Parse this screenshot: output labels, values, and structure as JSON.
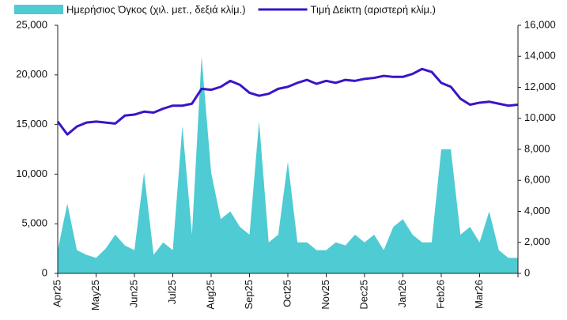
{
  "chart_data": {
    "type": "area-line",
    "categories": [
      "Apr25",
      null,
      null,
      null,
      "May25",
      null,
      null,
      null,
      "Jun25",
      null,
      null,
      null,
      "Jul25",
      null,
      null,
      null,
      "Aug25",
      null,
      null,
      null,
      "Sep25",
      null,
      null,
      null,
      "Oct25",
      null,
      null,
      null,
      "Nov25",
      null,
      null,
      null,
      "Dec25",
      null,
      null,
      null,
      "Jan26",
      null,
      null,
      null,
      "Feb26",
      null,
      null,
      null,
      "Mar26",
      null,
      null,
      null,
      null
    ],
    "series": [
      {
        "name": "Ημερήσιος Όγκος (χιλ. μετ., δεξιά κλίμ.)",
        "color": "#4ecbd3",
        "axis": "y2",
        "kind": "area",
        "values": [
          1500,
          4500,
          1500,
          1200,
          1000,
          1600,
          2500,
          1800,
          1500,
          6500,
          1200,
          2000,
          1500,
          9500,
          2500,
          14000,
          6500,
          3500,
          4000,
          3000,
          2500,
          9800,
          2000,
          2500,
          7200,
          2000,
          2000,
          1500,
          1500,
          2000,
          1800,
          2500,
          2000,
          2500,
          1500,
          3000,
          3500,
          2500,
          2000,
          2000,
          8000,
          8000,
          2500,
          3000,
          2000,
          4000,
          1500,
          1000,
          1000
        ]
      },
      {
        "name": "Τιμή Δείκτη (αριστερή κλίμ.)",
        "color": "#3a14c8",
        "kind": "line",
        "values": [
          15300,
          14000,
          14800,
          15200,
          15300,
          15200,
          15100,
          15900,
          16000,
          16300,
          16200,
          16600,
          16900,
          16900,
          17100,
          18600,
          18500,
          18800,
          19400,
          19000,
          18200,
          17900,
          18100,
          18600,
          18800,
          19200,
          19500,
          19100,
          19400,
          19200,
          19500,
          19400,
          19600,
          19700,
          19900,
          19800,
          19800,
          20100,
          20600,
          20300,
          19200,
          18800,
          17600,
          17000,
          17200,
          17300,
          17100,
          16900,
          17000
        ]
      }
    ],
    "ylim": [
      0,
      25000
    ],
    "yticks": [
      0,
      {
        "value": 5000,
        "label": "5,000"
      },
      {
        "value": 10000,
        "label": "10,000"
      },
      {
        "value": 15000,
        "label": "15,000"
      },
      {
        "value": 20000,
        "label": "20,000"
      },
      {
        "value": 25000,
        "label": "25,000"
      }
    ],
    "y2lim": [
      0,
      16000
    ],
    "y2ticks": [
      0,
      {
        "value": 2000,
        "label": "2,000"
      },
      {
        "value": 4000,
        "label": "4,000"
      },
      {
        "value": 6000,
        "label": "6,000"
      },
      {
        "value": 8000,
        "label": "8,000"
      },
      {
        "value": 10000,
        "label": "10,000"
      },
      {
        "value": 12000,
        "label": "12,000"
      },
      {
        "value": 14000,
        "label": "14,000"
      },
      {
        "value": 16000,
        "label": "16,000"
      }
    ],
    "legend": "top"
  }
}
